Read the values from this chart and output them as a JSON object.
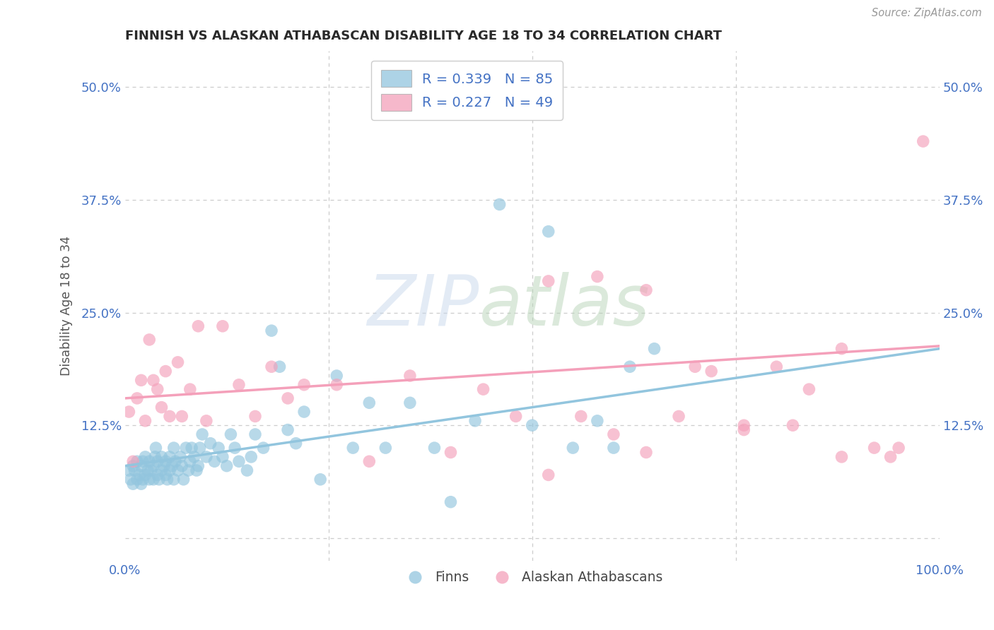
{
  "title": "FINNISH VS ALASKAN ATHABASCAN DISABILITY AGE 18 TO 34 CORRELATION CHART",
  "source": "Source: ZipAtlas.com",
  "ylabel": "Disability Age 18 to 34",
  "xlim": [
    0.0,
    1.0
  ],
  "ylim": [
    -0.025,
    0.54
  ],
  "yticks": [
    0.0,
    0.125,
    0.25,
    0.375,
    0.5
  ],
  "ytick_labels": [
    "",
    "12.5%",
    "25.0%",
    "37.5%",
    "50.0%"
  ],
  "legend_label1": "R = 0.339   N = 85",
  "legend_label2": "R = 0.227   N = 49",
  "legend_label3": "Finns",
  "legend_label4": "Alaskan Athabascans",
  "color_blue": "#92C5DE",
  "color_pink": "#F4A0BA",
  "axis_label_color": "#4472C4",
  "grid_color": "#cccccc",
  "background_color": "#ffffff",
  "title_fontsize": 13,
  "tick_fontsize": 13,
  "blue_line_start_y": 0.08,
  "blue_line_end_y": 0.21,
  "pink_line_start_y": 0.155,
  "pink_line_end_y": 0.213,
  "finns_x": [
    0.005,
    0.007,
    0.01,
    0.01,
    0.012,
    0.015,
    0.015,
    0.018,
    0.02,
    0.02,
    0.022,
    0.022,
    0.025,
    0.025,
    0.028,
    0.03,
    0.03,
    0.032,
    0.035,
    0.035,
    0.037,
    0.038,
    0.04,
    0.04,
    0.042,
    0.045,
    0.045,
    0.048,
    0.05,
    0.05,
    0.052,
    0.055,
    0.055,
    0.058,
    0.06,
    0.06,
    0.062,
    0.065,
    0.068,
    0.07,
    0.072,
    0.075,
    0.078,
    0.08,
    0.082,
    0.085,
    0.088,
    0.09,
    0.092,
    0.095,
    0.1,
    0.105,
    0.11,
    0.115,
    0.12,
    0.125,
    0.13,
    0.135,
    0.14,
    0.15,
    0.155,
    0.16,
    0.17,
    0.18,
    0.19,
    0.2,
    0.21,
    0.22,
    0.24,
    0.26,
    0.28,
    0.3,
    0.32,
    0.35,
    0.38,
    0.4,
    0.43,
    0.46,
    0.5,
    0.52,
    0.55,
    0.58,
    0.6,
    0.62,
    0.65
  ],
  "finns_y": [
    0.075,
    0.065,
    0.08,
    0.06,
    0.075,
    0.065,
    0.085,
    0.07,
    0.08,
    0.06,
    0.085,
    0.065,
    0.07,
    0.09,
    0.075,
    0.065,
    0.085,
    0.075,
    0.08,
    0.065,
    0.09,
    0.1,
    0.07,
    0.085,
    0.065,
    0.075,
    0.09,
    0.08,
    0.07,
    0.085,
    0.065,
    0.09,
    0.075,
    0.08,
    0.065,
    0.1,
    0.085,
    0.075,
    0.09,
    0.08,
    0.065,
    0.1,
    0.075,
    0.085,
    0.1,
    0.09,
    0.075,
    0.08,
    0.1,
    0.115,
    0.09,
    0.105,
    0.085,
    0.1,
    0.09,
    0.08,
    0.115,
    0.1,
    0.085,
    0.075,
    0.09,
    0.115,
    0.1,
    0.23,
    0.19,
    0.12,
    0.105,
    0.14,
    0.065,
    0.18,
    0.1,
    0.15,
    0.1,
    0.15,
    0.1,
    0.04,
    0.13,
    0.37,
    0.125,
    0.34,
    0.1,
    0.13,
    0.1,
    0.19,
    0.21
  ],
  "athabascan_x": [
    0.005,
    0.01,
    0.015,
    0.02,
    0.025,
    0.03,
    0.035,
    0.04,
    0.045,
    0.05,
    0.055,
    0.065,
    0.07,
    0.08,
    0.09,
    0.1,
    0.12,
    0.14,
    0.16,
    0.18,
    0.2,
    0.22,
    0.26,
    0.3,
    0.35,
    0.4,
    0.44,
    0.48,
    0.52,
    0.56,
    0.6,
    0.64,
    0.68,
    0.72,
    0.76,
    0.8,
    0.84,
    0.88,
    0.92,
    0.95,
    0.52,
    0.58,
    0.64,
    0.7,
    0.76,
    0.82,
    0.88,
    0.94,
    0.98
  ],
  "athabascan_y": [
    0.14,
    0.085,
    0.155,
    0.175,
    0.13,
    0.22,
    0.175,
    0.165,
    0.145,
    0.185,
    0.135,
    0.195,
    0.135,
    0.165,
    0.235,
    0.13,
    0.235,
    0.17,
    0.135,
    0.19,
    0.155,
    0.17,
    0.17,
    0.085,
    0.18,
    0.095,
    0.165,
    0.135,
    0.07,
    0.135,
    0.115,
    0.095,
    0.135,
    0.185,
    0.12,
    0.19,
    0.165,
    0.21,
    0.1,
    0.1,
    0.285,
    0.29,
    0.275,
    0.19,
    0.125,
    0.125,
    0.09,
    0.09,
    0.44
  ]
}
